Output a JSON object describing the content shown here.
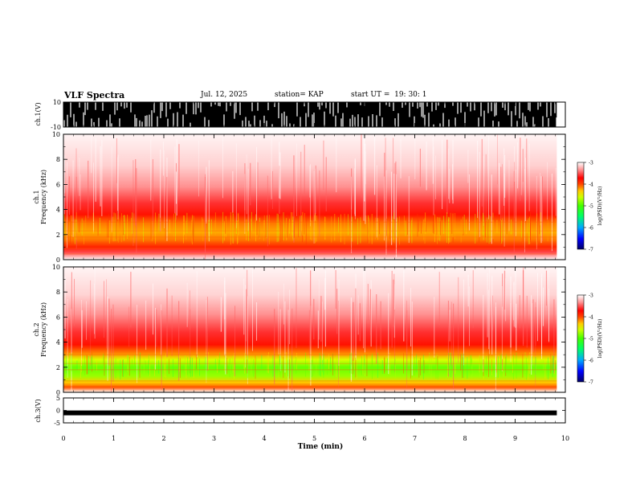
{
  "header": {
    "title": "VLF Spectra",
    "date": "Jul. 12, 2025",
    "station": "station= KAP",
    "start": "start UT =  19: 30: 1"
  },
  "colors": {
    "spectrogram_scale": [
      "#000066",
      "#0000ff",
      "#00aaff",
      "#00ffaa",
      "#00ff00",
      "#aaff00",
      "#ffff00",
      "#ffaa00",
      "#ff2a00",
      "#ff0000",
      "#ff9999",
      "#ffffff"
    ],
    "waveform": "#000000"
  },
  "chart_data": [
    {
      "type": "line",
      "name": "ch1-waveform",
      "ylabel": "ch.1(V)",
      "ylim": [
        -10,
        10
      ],
      "yticks": [
        "10",
        "-10"
      ],
      "note": "dense waveform, mostly saturating full scale"
    },
    {
      "type": "heatmap",
      "name": "ch1-spectrogram",
      "ylabel": "ch.1 Frequency (kHz)",
      "ylim": [
        0,
        10
      ],
      "yticks": [
        "0",
        "2",
        "4",
        "6",
        "8",
        "10"
      ],
      "band_peak_khz": [
        1.2,
        3.8
      ],
      "colorbar": {
        "label": "log(PSD)(V²/Hz)",
        "ticks": [
          "-3",
          "-4",
          "-5",
          "-6",
          "-7"
        ],
        "range": [
          -7,
          -3
        ]
      }
    },
    {
      "type": "heatmap",
      "name": "ch2-spectrogram",
      "ylabel": "ch.2 Frequency (kHz)",
      "ylim": [
        0,
        10
      ],
      "yticks": [
        "0",
        "2",
        "4",
        "6",
        "8",
        "10"
      ],
      "band_peak_khz": [
        1.0,
        3.2
      ],
      "colorbar": {
        "label": "log(PSD)(V²/Hz)",
        "ticks": [
          "-3",
          "-4",
          "-5",
          "-6",
          "-7"
        ],
        "range": [
          -7,
          -3
        ]
      }
    },
    {
      "type": "line",
      "name": "ch3-waveform",
      "ylabel": "ch.3(V)",
      "ylim": [
        -5,
        5
      ],
      "yticks": [
        "5",
        "0",
        "-5"
      ],
      "level": -1
    }
  ],
  "xaxis": {
    "label": "Time (min)",
    "range": [
      0,
      10
    ],
    "ticks": [
      "0",
      "1",
      "2",
      "3",
      "4",
      "5",
      "6",
      "7",
      "8",
      "9",
      "10"
    ],
    "data_end": 9.83
  }
}
